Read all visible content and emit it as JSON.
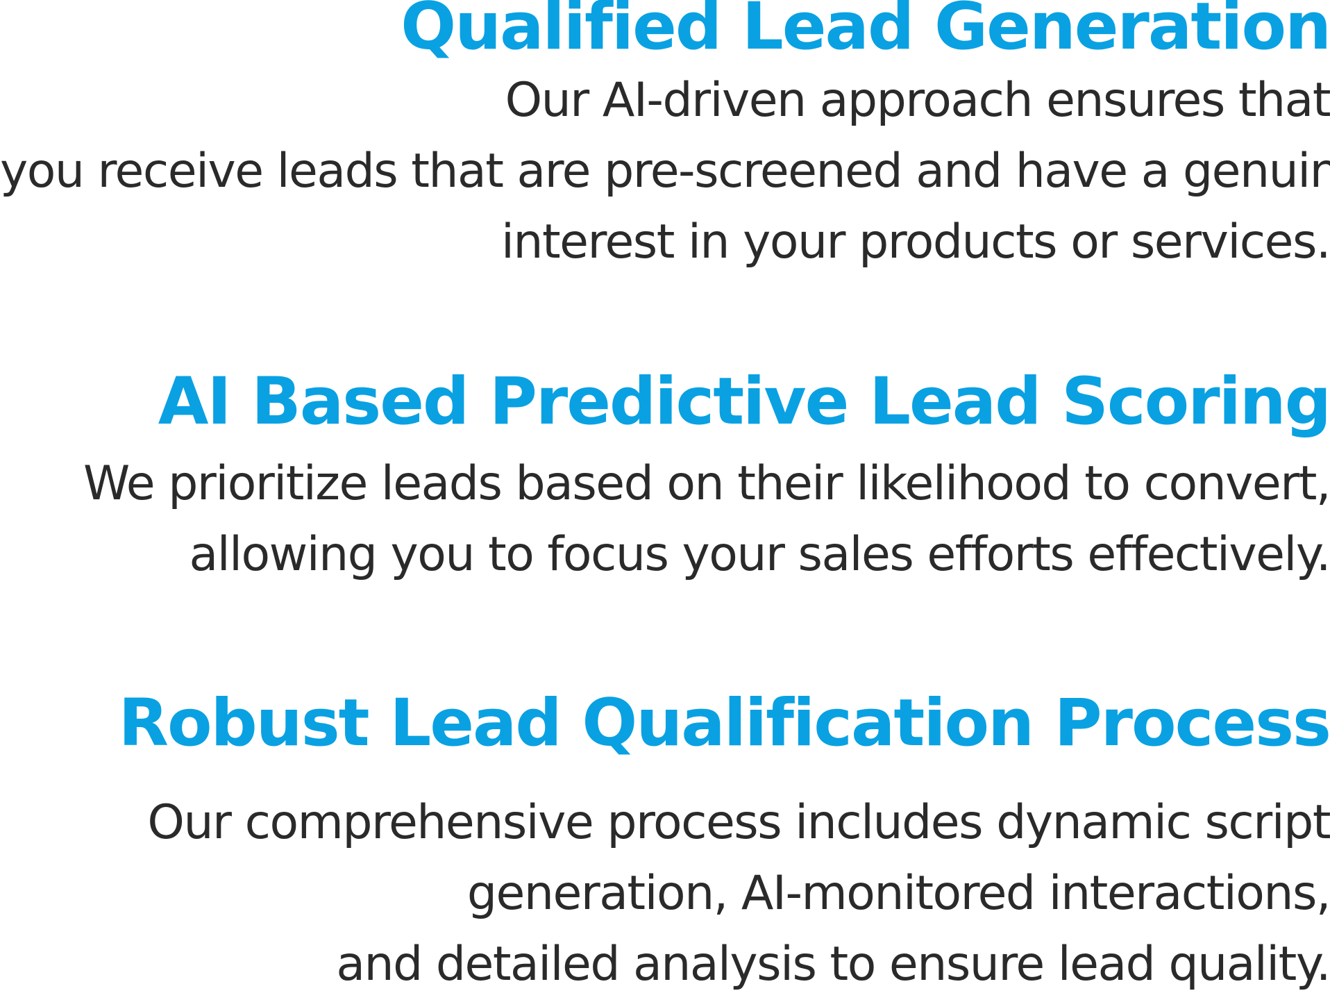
{
  "features": [
    {
      "title": "Qualified Lead Generation",
      "description_lines": [
        "Our AI-driven approach ensures that",
        "you receive leads that are pre-screened and have a genuine",
        "interest in your products or services."
      ]
    },
    {
      "title": "AI Based Predictive Lead Scoring",
      "description_lines": [
        "We prioritize leads based on their likelihood to convert,",
        "allowing you to focus your sales efforts effectively."
      ]
    },
    {
      "title": "Robust Lead Qualification Process",
      "description_lines": [
        "Our comprehensive process includes dynamic script",
        "generation, AI-monitored interactions,",
        "and detailed analysis to ensure lead quality."
      ]
    }
  ],
  "colors": {
    "heading": "#0aa1e2",
    "body_text": "#2a2a2a",
    "background": "#ffffff"
  }
}
